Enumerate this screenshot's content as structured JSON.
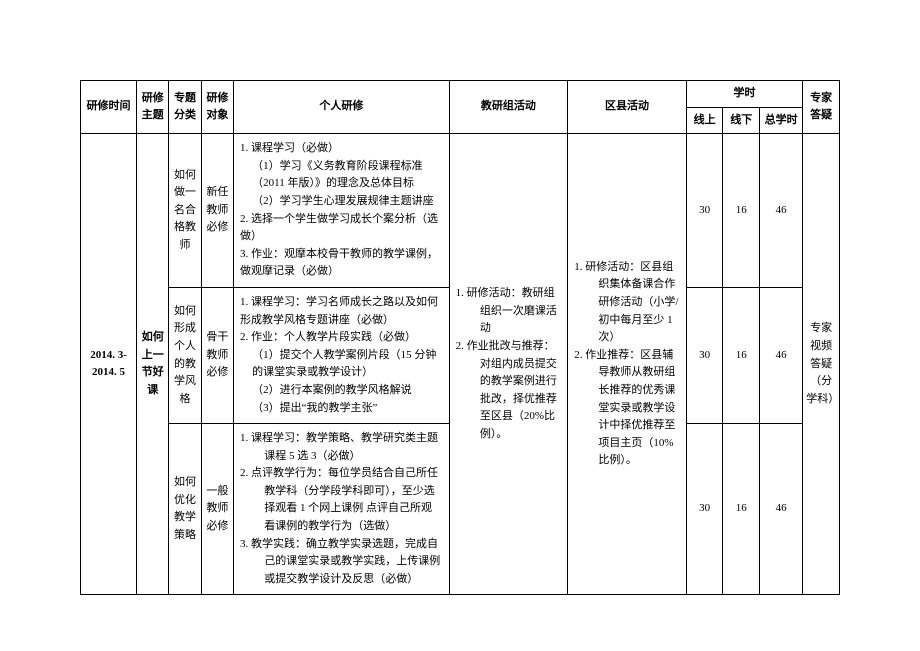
{
  "headers": {
    "time": "研修时间",
    "theme": "研修主题",
    "category": "专题分类",
    "target": "研修对象",
    "personal": "个人研修",
    "group": "教研组活动",
    "district": "区县活动",
    "hours": "学时",
    "online": "线上",
    "offline": "线下",
    "total": "总学时",
    "expert": "专家答疑"
  },
  "period": "2014. 3-2014. 5",
  "theme": "如何上一节好课",
  "rows": [
    {
      "category": "如何做一名合格教师",
      "target": "新任教师必修",
      "personal_html": "<div>1. 课程学习（必做）</div><div class='hang2'>（1）学习《义务教育阶段课程标准（2011 年版）》的理念及总体目标</div><div class='hang2'>（2）学习学生心理发展规律主题讲座</div><div>2. 选择一个学生做学习成长个案分析（选做）</div><div>3. 作业：观摩本校骨干教师的教学课例，做观摩记录（必做）</div>",
      "online": "30",
      "offline": "16",
      "total": "46"
    },
    {
      "category": "如何形成个人的教学风格",
      "target": "骨干教师必修",
      "personal_html": "<div>1. 课程学习：学习名师成长之路以及如何形成教学风格专题讲座（必做）</div><div>2. 作业：个人教学片段实践（必做）</div><div class='hang2'>（1）提交个人教学案例片段（15 分钟的课堂实录或教学设计）</div><div class='hang2'>（2）进行本案例的教学风格解说</div><div class='hang2'>（3）提出“我的教学主张”</div>",
      "online": "30",
      "offline": "16",
      "total": "46"
    },
    {
      "category": "如何优化教学策略",
      "target": "一般教师必修",
      "personal_html": "<div class='hang'>1. 课程学习：教学策略、教学研究类主题课程 5 选 3（必做）</div><div class='hang'>2. 点评教学行为：每位学员结合自己所任教学科（分学段学科即可），至少选择观看 1 个网上课例 点评自己所观看课例的教学行为（选做）</div><div class='hang'>3. 教学实践：确立教学实录选题，完成自己的课堂实录或教学实践，上传课例或提交教学设计及反思（必做）</div>",
      "online": "30",
      "offline": "16",
      "total": "46"
    }
  ],
  "group_html": "<div class='hang'>1. 研修活动：教研组组织一次磨课活动</div><div class='hang'>2. 作业批改与推荐：对组内成员提交的教学案例进行批改，择优推荐至区县（20%比例）。</div>",
  "district_html": "<div class='hang'>1. 研修活动：区县组织集体备课合作研修活动（小学/初中每月至少 1 次）</div><div class='hang'>2. 作业推荐：区县辅导教师从教研组长推荐的优秀课堂实录或教学设计中择优推荐至项目主页（10%比例）。</div>",
  "expert": "专家视频答疑（分学科）",
  "colwidths": {
    "time": 52,
    "theme": 30,
    "category": 30,
    "target": 30,
    "personal": 200,
    "group": 110,
    "district": 110,
    "online": 34,
    "offline": 34,
    "total": 40,
    "expert": 34
  }
}
